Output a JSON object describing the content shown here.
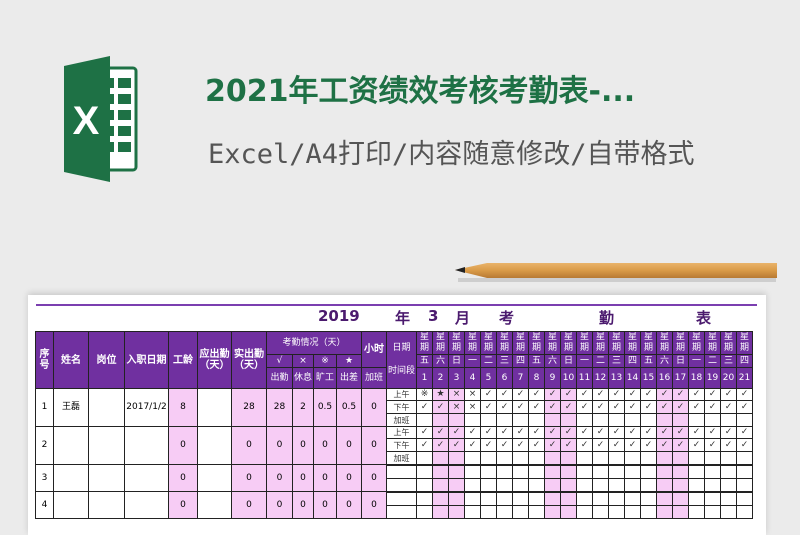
{
  "banner": {
    "title": "2021年工资绩效考核考勤表-...",
    "subtitle": "Excel/A4打印/内容随意修改/自带格式",
    "logo_letter": "X",
    "logo_color": "#1e7145"
  },
  "sheet": {
    "title_parts": [
      "2019",
      "年",
      "3",
      "月",
      "考",
      "勤",
      "表"
    ],
    "headers": {
      "seq": "序号",
      "name": "姓名",
      "position": "岗位",
      "hire_date": "入职日期",
      "seniority": "工龄",
      "due_days": "应出勤（天）",
      "actual_days": "实出勤（天）",
      "attendance_group": "考勤情况（天）",
      "symbols": [
        "√",
        "×",
        "※",
        "★"
      ],
      "attendance_labels": [
        "出勤",
        "休息",
        "旷工",
        "出差"
      ],
      "hours": "小时",
      "overtime": "加班",
      "date": "日期",
      "time_slot": "时间段",
      "week_label": "星期"
    },
    "weekdays": [
      "五",
      "六",
      "日",
      "一",
      "二",
      "三",
      "四",
      "五",
      "六",
      "日",
      "一",
      "二",
      "三",
      "四",
      "五",
      "六",
      "日",
      "一",
      "二",
      "三",
      "四"
    ],
    "days": [
      "1",
      "2",
      "3",
      "4",
      "5",
      "6",
      "7",
      "8",
      "9",
      "10",
      "11",
      "12",
      "13",
      "14",
      "15",
      "16",
      "17",
      "18",
      "19",
      "20",
      "21"
    ],
    "weekend_days": [
      "2",
      "3",
      "9",
      "10",
      "16",
      "17"
    ],
    "slot_labels": [
      "上午",
      "下午",
      "加班"
    ],
    "employees": [
      {
        "seq": "1",
        "name": "王磊",
        "position": "",
        "hire_date": "2017/1/2",
        "seniority": "8",
        "due": "",
        "actual": "28",
        "present": "28",
        "rest": "2",
        "absent": "0.5",
        "trip": "0.5",
        "overtime": "0",
        "slots": [
          "上午",
          "下午",
          "加班"
        ],
        "am": [
          "※",
          "★",
          "×",
          "×",
          "✓",
          "✓",
          "✓",
          "✓",
          "✓",
          "✓",
          "✓",
          "✓",
          "✓",
          "✓",
          "✓",
          "✓",
          "✓",
          "✓",
          "✓",
          "✓",
          "✓"
        ],
        "pm": [
          "✓",
          "✓",
          "×",
          "×",
          "✓",
          "✓",
          "✓",
          "✓",
          "✓",
          "✓",
          "✓",
          "✓",
          "✓",
          "✓",
          "✓",
          "✓",
          "✓",
          "✓",
          "✓",
          "✓",
          "✓"
        ]
      },
      {
        "seq": "2",
        "name": "",
        "position": "",
        "hire_date": "",
        "seniority": "0",
        "due": "",
        "actual": "0",
        "present": "0",
        "rest": "0",
        "absent": "0",
        "trip": "0",
        "overtime": "0",
        "slots": [
          "上午",
          "下午",
          "加班"
        ],
        "am": [
          "✓",
          "✓",
          "✓",
          "✓",
          "✓",
          "✓",
          "✓",
          "✓",
          "✓",
          "✓",
          "✓",
          "✓",
          "✓",
          "✓",
          "✓",
          "✓",
          "✓",
          "✓",
          "✓",
          "✓",
          "✓"
        ],
        "pm": [
          "✓",
          "✓",
          "✓",
          "✓",
          "✓",
          "✓",
          "✓",
          "✓",
          "✓",
          "✓",
          "✓",
          "✓",
          "✓",
          "✓",
          "✓",
          "✓",
          "✓",
          "✓",
          "✓",
          "✓",
          "✓"
        ]
      },
      {
        "seq": "3",
        "name": "",
        "position": "",
        "hire_date": "",
        "seniority": "0",
        "due": "",
        "actual": "0",
        "present": "0",
        "rest": "0",
        "absent": "0",
        "trip": "0",
        "overtime": "0",
        "slots": [
          "",
          "",
          ""
        ],
        "am": [],
        "pm": []
      },
      {
        "seq": "4",
        "name": "",
        "position": "",
        "hire_date": "",
        "seniority": "0",
        "due": "",
        "actual": "0",
        "present": "0",
        "rest": "0",
        "absent": "0",
        "trip": "0",
        "overtime": "0",
        "slots": [
          "",
          "",
          ""
        ],
        "am": [],
        "pm": []
      }
    ],
    "colors": {
      "header": "#7030a0",
      "pink": "#f7ccf5",
      "title": "#4b1a6e"
    }
  }
}
